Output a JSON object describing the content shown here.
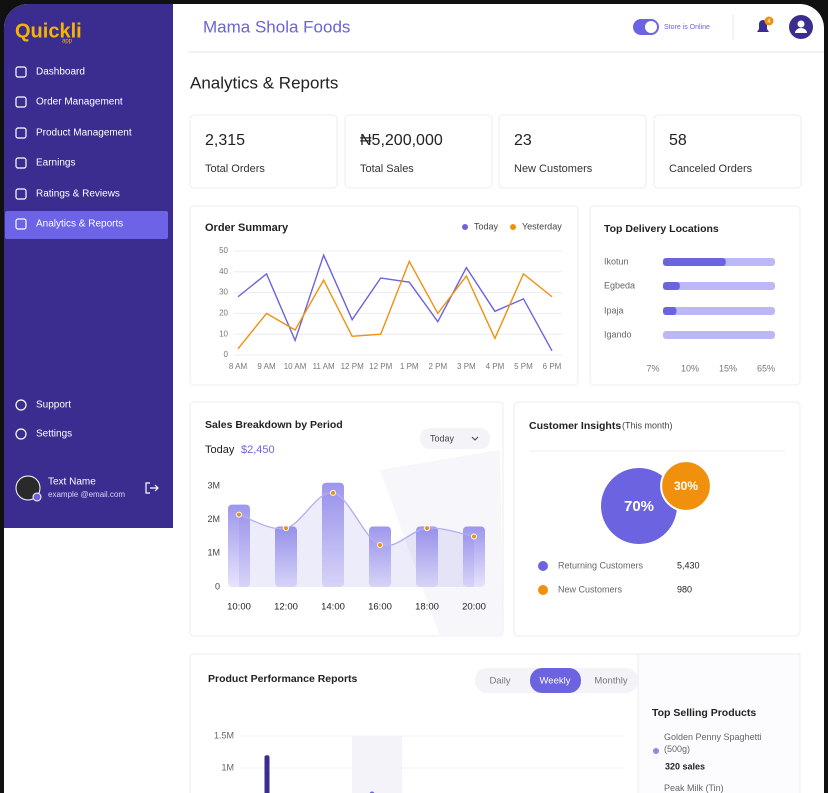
{
  "sidebar": {
    "logo": "Quickli",
    "logo_sub": "app",
    "menu": [
      "Dashboard",
      "Order Management",
      "Product Management",
      "Earnings",
      "Ratings & Reviews",
      "Analytics & Reports"
    ],
    "footer_menu": [
      "Support",
      "Settings"
    ],
    "user": {
      "name": "Text Name",
      "email": "example @email.com"
    }
  },
  "header": {
    "store_name": "Mama Shola Foods",
    "status": "Store is Online",
    "notifications": 4
  },
  "page_title": "Analytics & Reports",
  "stats": [
    {
      "value": "2,315",
      "label": "Total Orders"
    },
    {
      "value": "₦5,200,000",
      "label": "Total Sales"
    },
    {
      "value": "23",
      "label": "New Customers"
    },
    {
      "value": "58",
      "label": "Canceled Orders"
    }
  ],
  "chart_data": [
    {
      "type": "line",
      "title": "Order Summary",
      "categories": [
        "8 AM",
        "9 AM",
        "10 AM",
        "11 AM",
        "12 PM",
        "12 PM",
        "1 PM",
        "2 PM",
        "3 PM",
        "4 PM",
        "5 PM",
        "6 PM"
      ],
      "series": [
        {
          "name": "Today",
          "color": "#6c63e0",
          "values": [
            28,
            39,
            7,
            48,
            17,
            37,
            35,
            16,
            42,
            21,
            27,
            2
          ]
        },
        {
          "name": "Yesterday",
          "color": "#f0900d",
          "values": [
            3,
            20,
            12,
            36,
            9,
            10,
            45,
            20,
            38,
            8,
            39,
            28
          ]
        }
      ],
      "ylim": [
        0,
        50
      ],
      "yticks": [
        0,
        10,
        20,
        30,
        40,
        50
      ],
      "grid": true
    },
    {
      "type": "bar",
      "orientation": "horizontal",
      "title": "Top Delivery Locations",
      "categories": [
        "Ikotun",
        "Egbeda",
        "Ipaja",
        "Igando"
      ],
      "values": [
        56,
        15,
        12,
        0
      ],
      "xlim": [
        0,
        100
      ],
      "axis_labels": [
        "7%",
        "10%",
        "15%",
        "65%"
      ],
      "color": "#6c63e0",
      "track_color": "#bcb8f6"
    },
    {
      "type": "bar",
      "title": "Sales Breakdown by Period",
      "subtitle": "Today",
      "total": "$2,450",
      "dropdown": "Today",
      "categories": [
        "10:00",
        "12:00",
        "14:00",
        "16:00",
        "18:00",
        "20:00"
      ],
      "values": [
        2450000,
        1800000,
        3100000,
        1800000,
        1800000,
        1800000
      ],
      "trend": [
        2150000,
        1750000,
        2800000,
        1250000,
        1750000,
        1500000
      ],
      "color": "#c5c1f3",
      "trend_color": "#f0900d",
      "ylim": [
        0,
        3300000
      ],
      "yticks": [
        0,
        {
          "value": 1000000,
          "label": "1M"
        },
        {
          "value": 2000000,
          "label": "2M"
        },
        {
          "value": 3000000,
          "label": "3M"
        }
      ]
    },
    {
      "type": "pie",
      "title": "Customer Insights",
      "subtitle": "(This month)",
      "labels": [
        "Returning Customers",
        "New Customers"
      ],
      "values": [
        70,
        30
      ],
      "value_labels": [
        "70%",
        "30%"
      ],
      "counts": [
        "5,430",
        "980"
      ],
      "colors": [
        "#6c63e0",
        "#f0900d"
      ]
    },
    {
      "type": "bar",
      "title": "Product Performance Reports",
      "tabs": [
        "Daily",
        "Weekly",
        "Monthly"
      ],
      "categories": [
        null
      ],
      "values": [
        1200000
      ],
      "color": "#3a2d8f",
      "ylim": [
        0,
        1500000
      ],
      "yticks": [
        {
          "value": 1500000,
          "label": "1.5M"
        },
        {
          "value": 1000000,
          "label": "1M"
        }
      ],
      "grid": true
    }
  ],
  "top_selling": {
    "title": "Top Selling Products",
    "items": [
      {
        "name": "Golden Penny Spaghetti (500g)",
        "sales": "320 sales"
      },
      {
        "name": "Peak Milk (Tin)"
      }
    ]
  }
}
